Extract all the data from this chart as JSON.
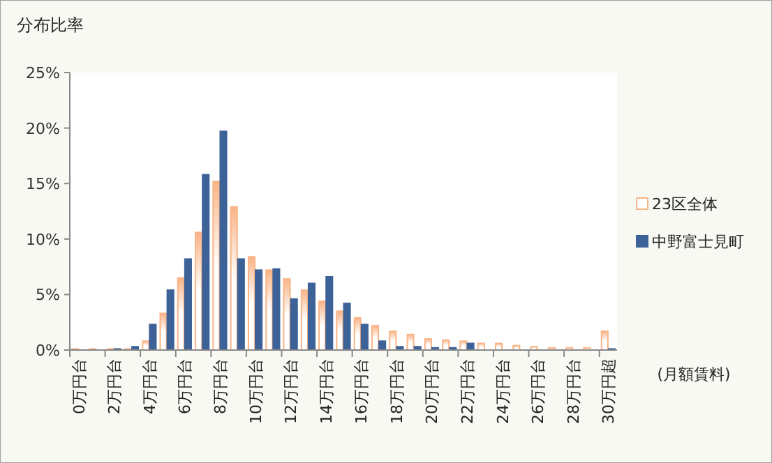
{
  "chart_data": {
    "type": "bar",
    "ylabel": "分布比率",
    "xlabel": "(月額賃料)",
    "categories": [
      "0万円台",
      null,
      "2万円台",
      null,
      "4万円台",
      null,
      "6万円台",
      null,
      "8万円台",
      null,
      "10万円台",
      null,
      "12万円台",
      null,
      "14万円台",
      null,
      "16万円台",
      null,
      "18万円台",
      null,
      "20万円台",
      null,
      "22万円台",
      null,
      "24万円台",
      null,
      "26万円台",
      null,
      "28万円台",
      null,
      "30万円超"
    ],
    "series": [
      {
        "name": "23区全体",
        "color": "#f9b487",
        "values": [
          0.1,
          0.1,
          0.1,
          0.1,
          0.8,
          3.3,
          6.5,
          10.6,
          15.2,
          12.9,
          8.4,
          7.2,
          6.4,
          5.4,
          4.4,
          3.5,
          2.9,
          2.2,
          1.7,
          1.4,
          1.0,
          0.9,
          0.8,
          0.6,
          0.6,
          0.4,
          0.3,
          0.2,
          0.2,
          0.2,
          1.7
        ]
      },
      {
        "name": "中野富士見町",
        "color": "#3d6298",
        "values": [
          0,
          0,
          0.1,
          0.3,
          2.3,
          5.4,
          8.2,
          15.8,
          19.7,
          8.2,
          7.2,
          7.3,
          4.6,
          6.0,
          6.6,
          4.2,
          2.3,
          0.8,
          0.3,
          0.3,
          0.2,
          0.2,
          0.6,
          0,
          0,
          0,
          0,
          0,
          0,
          0,
          0.1
        ]
      }
    ],
    "ylim": [
      0,
      25
    ],
    "yticks": [
      {
        "value": 0,
        "label": "0%"
      },
      {
        "value": 5,
        "label": "5%"
      },
      {
        "value": 10,
        "label": "10%"
      },
      {
        "value": 15,
        "label": "15%"
      },
      {
        "value": 20,
        "label": "20%"
      },
      {
        "value": 25,
        "label": "25%"
      }
    ],
    "legend": "right",
    "grid": false
  }
}
